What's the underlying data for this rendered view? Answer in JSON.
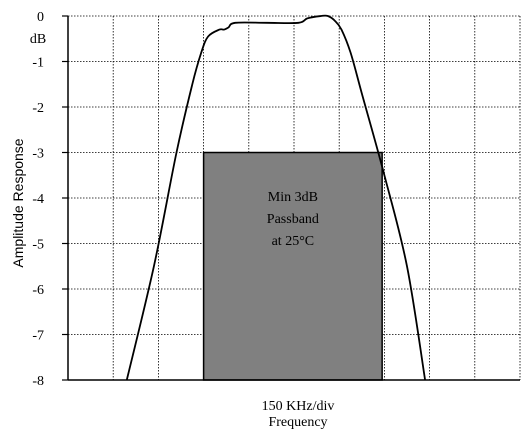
{
  "chart_data": {
    "type": "line",
    "title": "",
    "ylabel": "Amplitude Response",
    "xlabel": "Frequency",
    "x_scale_label": "150 KHz/div",
    "y_unit": "dB",
    "ylim": [
      -8,
      0
    ],
    "xlim": [
      0,
      10
    ],
    "yticks": [
      "0",
      "-1",
      "-2",
      "-3",
      "-4",
      "-5",
      "-6",
      "-7",
      "-8"
    ],
    "grid": true,
    "series": [
      {
        "x": [
          1.3,
          1.9,
          2.4,
          2.75,
          2.95,
          3.1,
          3.35,
          3.45,
          3.55,
          3.7,
          4.4,
          5.1,
          5.3,
          5.6,
          5.75,
          5.9,
          6.05,
          6.25,
          6.5,
          7.0,
          7.5,
          7.9
        ],
        "y": [
          -8,
          -5.5,
          -3.0,
          -1.5,
          -0.8,
          -0.45,
          -0.3,
          -0.3,
          -0.25,
          -0.15,
          -0.15,
          -0.15,
          -0.05,
          0.0,
          0.0,
          -0.1,
          -0.3,
          -0.8,
          -1.7,
          -3.5,
          -5.5,
          -8
        ]
      }
    ],
    "annotation": {
      "lines": [
        "Min 3dB",
        "Passband",
        "at 25°C"
      ],
      "x_range": [
        3.0,
        6.95
      ],
      "y_range": [
        -8,
        -3
      ],
      "fill": "#808080"
    },
    "colors": {
      "curve": "#000000",
      "grid": "#000000",
      "box_stroke": "#000000"
    }
  }
}
